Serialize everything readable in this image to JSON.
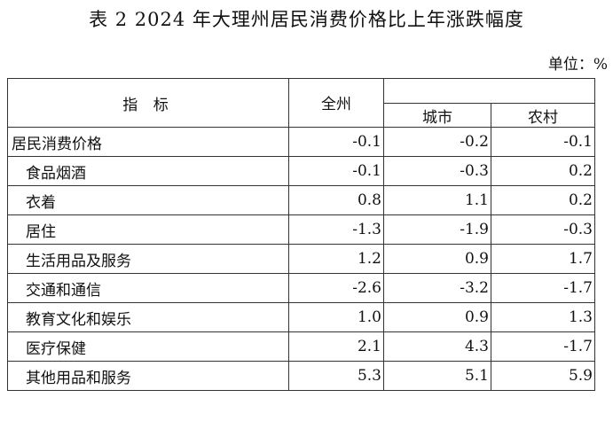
{
  "title": "表 2   2024 年大理州居民消费价格比上年涨跌幅度",
  "unit": "单位：%",
  "table": {
    "headers": {
      "indicator": "指    标",
      "all": "全州",
      "city": "城市",
      "rural": "农村"
    },
    "rows": [
      {
        "name": "居民消费价格",
        "all": "-0.1",
        "city": "-0.2",
        "rural": "-0.1"
      },
      {
        "name": "食品烟酒",
        "all": "-0.1",
        "city": "-0.3",
        "rural": "0.2"
      },
      {
        "name": "衣着",
        "all": "0.8",
        "city": "1.1",
        "rural": "0.2"
      },
      {
        "name": "居住",
        "all": "-1.3",
        "city": "-1.9",
        "rural": "-0.3"
      },
      {
        "name": "生活用品及服务",
        "all": "1.2",
        "city": "0.9",
        "rural": "1.7"
      },
      {
        "name": "交通和通信",
        "all": "-2.6",
        "city": "-3.2",
        "rural": "-1.7"
      },
      {
        "name": "教育文化和娱乐",
        "all": "1.0",
        "city": "0.9",
        "rural": "1.3"
      },
      {
        "name": "医疗保健",
        "all": "2.1",
        "city": "4.3",
        "rural": "-1.7"
      },
      {
        "name": "其他用品和服务",
        "all": "5.3",
        "city": "5.1",
        "rural": "5.9"
      }
    ]
  }
}
